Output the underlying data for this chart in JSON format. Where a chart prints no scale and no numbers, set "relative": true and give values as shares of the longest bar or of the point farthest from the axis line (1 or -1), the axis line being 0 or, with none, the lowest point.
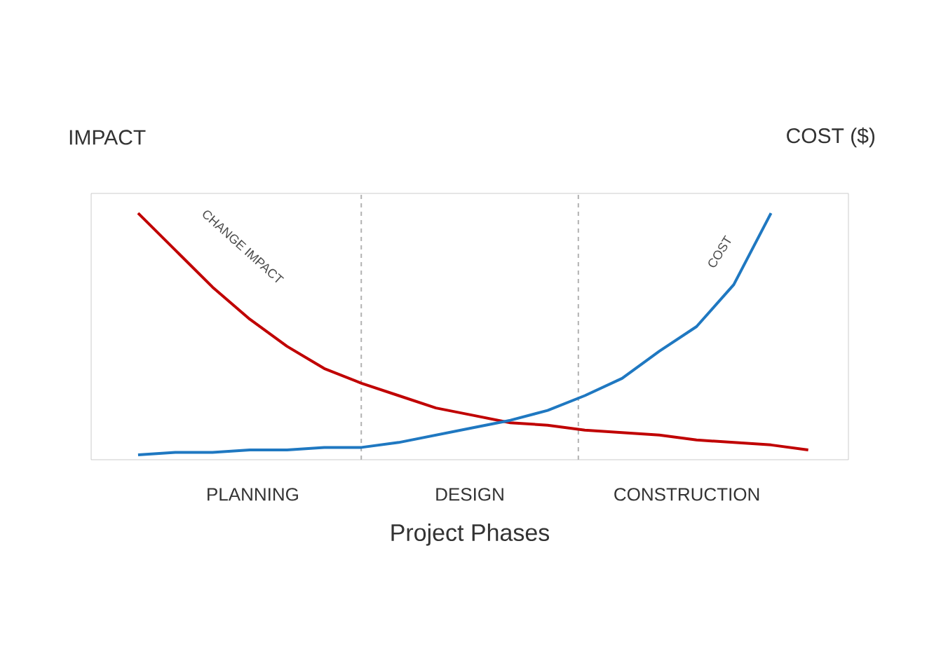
{
  "chart_data": {
    "type": "line",
    "relative": true,
    "ylabel": "IMPACT",
    "y2label": "COST ($)",
    "xlabel": "Project Phases",
    "categories": [
      null,
      null,
      null,
      null,
      null,
      null,
      null,
      null,
      null,
      null,
      null,
      null,
      null,
      null,
      null,
      null,
      null,
      null,
      null
    ],
    "annotations": [
      "PLANNING",
      "DESIGN",
      "CONSTRUCTION"
    ],
    "marker": "none",
    "line_style": "solid",
    "legend": false,
    "series": [
      {
        "name": "CHANGE IMPACT",
        "color": "#c00000",
        "values": [
          1.0,
          0.85,
          0.7,
          0.57,
          0.46,
          0.37,
          0.31,
          0.26,
          0.21,
          0.18,
          0.15,
          0.14,
          0.12,
          0.11,
          0.1,
          0.08,
          0.07,
          0.06,
          0.04
        ]
      },
      {
        "name": "COST",
        "color": "#1f78c1",
        "values": [
          0.02,
          0.03,
          0.03,
          0.04,
          0.04,
          0.05,
          0.05,
          0.07,
          0.1,
          0.13,
          0.16,
          0.2,
          0.26,
          0.33,
          0.44,
          0.54,
          0.71,
          1.0,
          null
        ]
      }
    ]
  }
}
